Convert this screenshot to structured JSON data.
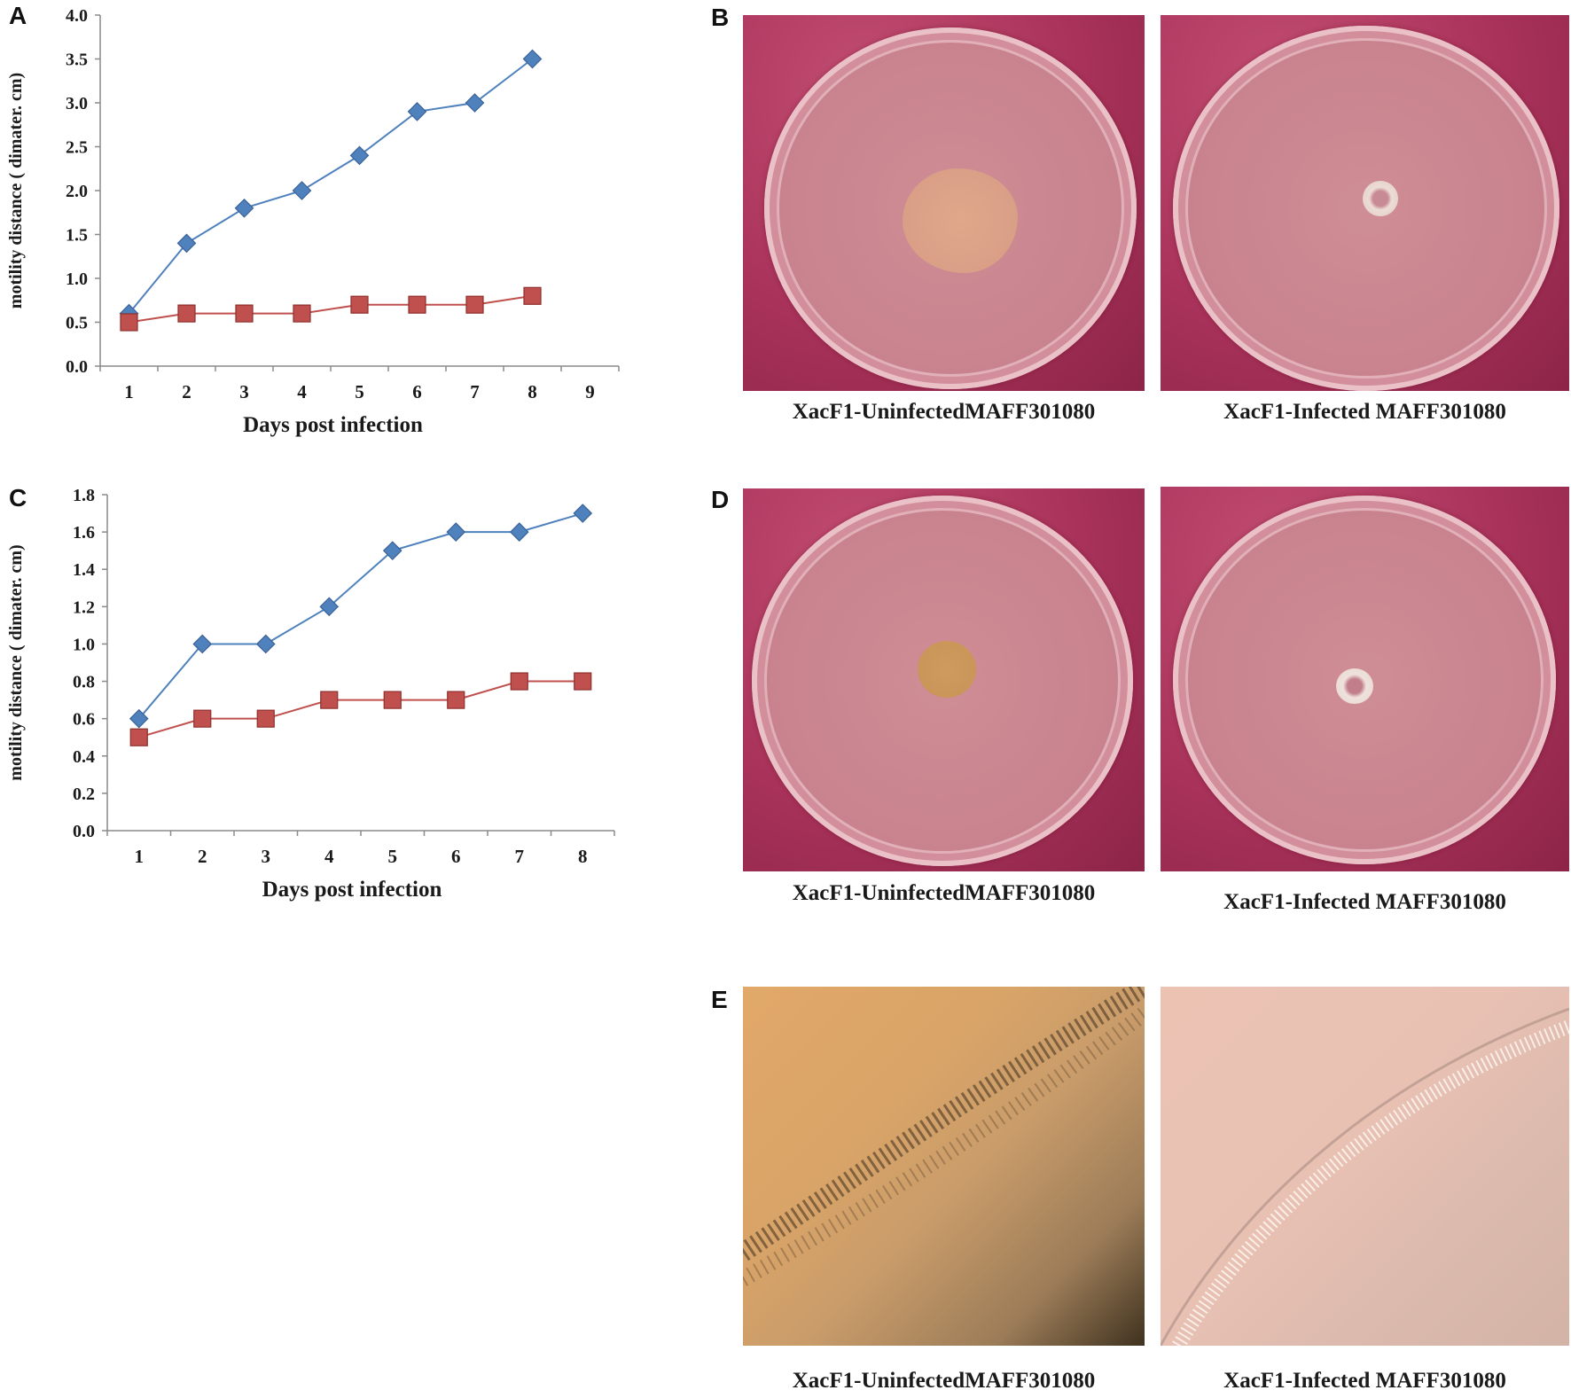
{
  "panels": {
    "A": "A",
    "B": "B",
    "C": "C",
    "D": "D",
    "E": "E"
  },
  "captions": {
    "uninfected": "XacF1-UninfectedMAFF301080",
    "infected": "XacF1-Infected MAFF301080"
  },
  "chart_data": [
    {
      "panel": "A",
      "type": "line",
      "xlabel": "Days post infection",
      "ylabel": "motility distance ( dimater. cm)",
      "x_ticks": [
        1,
        2,
        3,
        4,
        5,
        6,
        7,
        8,
        9
      ],
      "xlim": [
        0.5,
        9.5
      ],
      "ylim": [
        0.0,
        4.0
      ],
      "y_ticks": [
        "0.0",
        "0.5",
        "1.0",
        "1.5",
        "2.0",
        "2.5",
        "3.0",
        "3.5",
        "4.0"
      ],
      "grid": false,
      "legend": "none",
      "series": [
        {
          "color": "#4f81bd",
          "marker": "diamond",
          "x": [
            1,
            2,
            3,
            4,
            5,
            6,
            7,
            8
          ],
          "y": [
            0.6,
            1.4,
            1.8,
            2.0,
            2.4,
            2.9,
            3.0,
            3.5
          ]
        },
        {
          "color": "#c0504d",
          "marker": "square",
          "x": [
            1,
            2,
            3,
            4,
            5,
            6,
            7,
            8
          ],
          "y": [
            0.5,
            0.6,
            0.6,
            0.6,
            0.7,
            0.7,
            0.7,
            0.8
          ]
        }
      ]
    },
    {
      "panel": "C",
      "type": "line",
      "xlabel": "Days post infection",
      "ylabel": "motility distance ( dimater. cm)",
      "x_ticks": [
        1,
        2,
        3,
        4,
        5,
        6,
        7,
        8
      ],
      "xlim": [
        0.5,
        8.5
      ],
      "ylim": [
        0.0,
        1.8
      ],
      "y_ticks": [
        "0.0",
        "0.2",
        "0.4",
        "0.6",
        "0.8",
        "1.0",
        "1.2",
        "1.4",
        "1.6",
        "1.8"
      ],
      "grid": false,
      "legend": "none",
      "series": [
        {
          "color": "#4f81bd",
          "marker": "diamond",
          "x": [
            1,
            2,
            3,
            4,
            5,
            6,
            7,
            8
          ],
          "y": [
            0.6,
            1.0,
            1.0,
            1.2,
            1.5,
            1.6,
            1.6,
            1.7
          ]
        },
        {
          "color": "#c0504d",
          "marker": "square",
          "x": [
            1,
            2,
            3,
            4,
            5,
            6,
            7,
            8
          ],
          "y": [
            0.5,
            0.6,
            0.6,
            0.7,
            0.7,
            0.7,
            0.8,
            0.8
          ]
        }
      ]
    }
  ]
}
